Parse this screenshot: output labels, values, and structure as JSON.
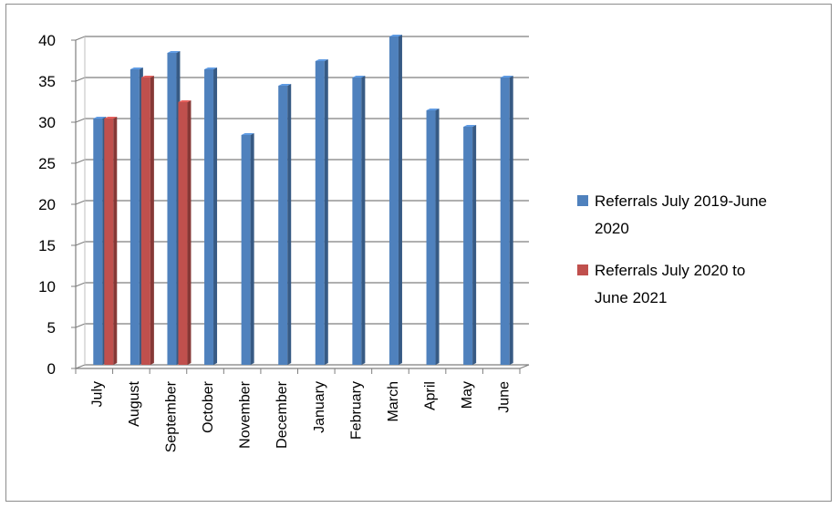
{
  "chart_data": {
    "type": "bar",
    "title": "",
    "xlabel": "",
    "ylabel": "",
    "ylim": [
      0,
      40
    ],
    "yticks": [
      0,
      5,
      10,
      15,
      20,
      25,
      30,
      35,
      40
    ],
    "grid": true,
    "legend_position": "right",
    "categories": [
      "July",
      "August",
      "September",
      "October",
      "November",
      "December",
      "January",
      "February",
      "March",
      "April",
      "May",
      "June"
    ],
    "series": [
      {
        "name": "Referrals July 2019-June 2020",
        "legend_lines": [
          "Referrals July 2019-June",
          "2020"
        ],
        "color": "#4f81bd",
        "values": [
          30,
          36,
          38,
          36,
          28,
          34,
          37,
          35,
          40,
          31,
          29,
          35
        ]
      },
      {
        "name": "Referrals July 2020 to June 2021",
        "legend_lines": [
          "Referrals July 2020 to",
          "June 2021"
        ],
        "color": "#c0504d",
        "values": [
          30,
          35,
          32,
          null,
          null,
          null,
          null,
          null,
          null,
          null,
          null,
          null
        ]
      }
    ]
  }
}
